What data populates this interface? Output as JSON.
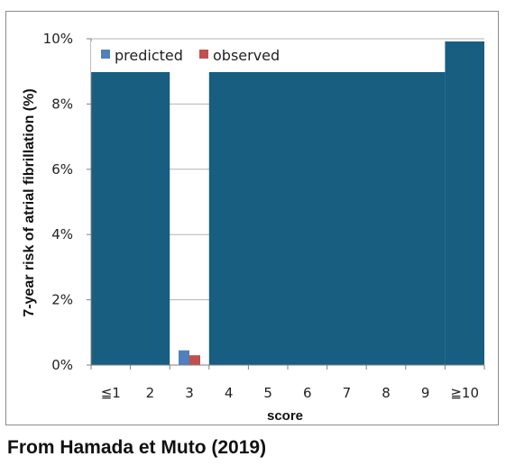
{
  "caption": "From Hamada et Muto (2019)",
  "colors": {
    "occluder": "#175e80",
    "predicted": "#4f81bd",
    "observed": "#c0504d",
    "grid": "#b3b3b3",
    "axis": "#7f7f7f"
  },
  "chart_data": {
    "type": "bar",
    "title": "",
    "xlabel": "score",
    "ylabel": "7-year risk of atrial fibrillation (%)",
    "ylim": [
      0,
      10
    ],
    "yticks": [
      "0%",
      "2%",
      "4%",
      "6%",
      "8%",
      "10%"
    ],
    "categories": [
      "≦1",
      "2",
      "3",
      "4",
      "5",
      "6",
      "7",
      "8",
      "9",
      "≧10"
    ],
    "legend_position": "top-left",
    "series": [
      {
        "name": "predicted",
        "values": [
          null,
          null,
          0.45,
          null,
          null,
          null,
          null,
          null,
          null,
          null
        ]
      },
      {
        "name": "observed",
        "values": [
          null,
          null,
          0.3,
          null,
          null,
          null,
          null,
          null,
          null,
          null
        ]
      }
    ],
    "occluded_categories": [
      "≦1",
      "2",
      "4",
      "5",
      "6",
      "7",
      "8",
      "9",
      "≧10"
    ]
  }
}
